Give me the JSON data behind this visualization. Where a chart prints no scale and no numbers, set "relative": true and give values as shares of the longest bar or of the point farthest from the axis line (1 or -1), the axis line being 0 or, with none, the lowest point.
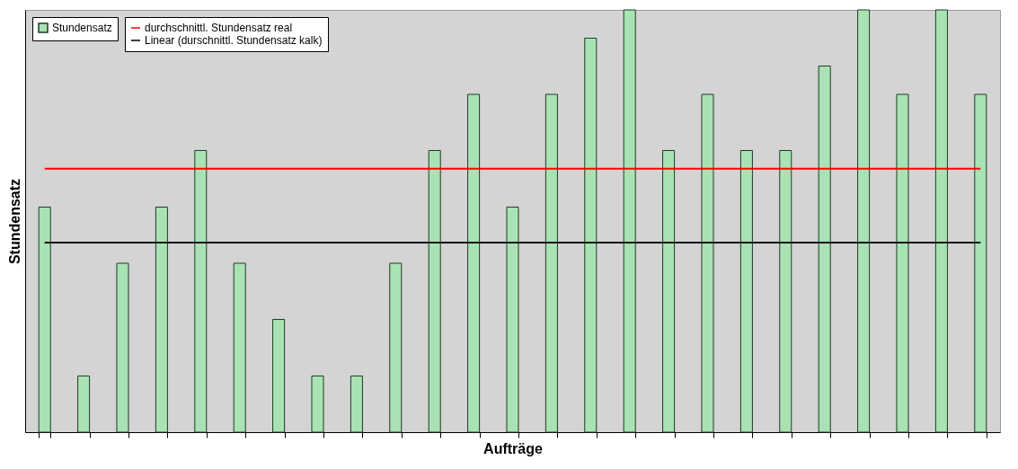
{
  "chart_data": {
    "type": "bar",
    "xlabel": "Aufträge",
    "ylabel": "Stundensatz",
    "relative": true,
    "legend": "top left",
    "categories": [
      null,
      null,
      null,
      null,
      null,
      null,
      null,
      null,
      null,
      null,
      null,
      null,
      null,
      null,
      null,
      null,
      null,
      null,
      null,
      null,
      null,
      null,
      null,
      null,
      null
    ],
    "series": [
      {
        "name": "Stundensatz",
        "color": "#a9e2b4",
        "values": [
          0.533,
          0.133,
          0.4,
          0.533,
          0.667,
          0.4,
          0.267,
          0.133,
          0.133,
          0.4,
          0.667,
          0.8,
          0.533,
          0.8,
          0.933,
          1,
          0.667,
          0.8,
          0.667,
          0.667,
          0.867,
          1,
          0.8,
          1,
          0.8
        ]
      }
    ],
    "ref_lines": [
      {
        "axis": "y",
        "value": 0.624,
        "label": "durchschnittl. Stundensatz real",
        "color": "#ff0000"
      },
      {
        "axis": "y",
        "value": 0.449,
        "label": "Linear (durschnittl. Stundensatz kalk)",
        "color": "#000000"
      }
    ]
  }
}
